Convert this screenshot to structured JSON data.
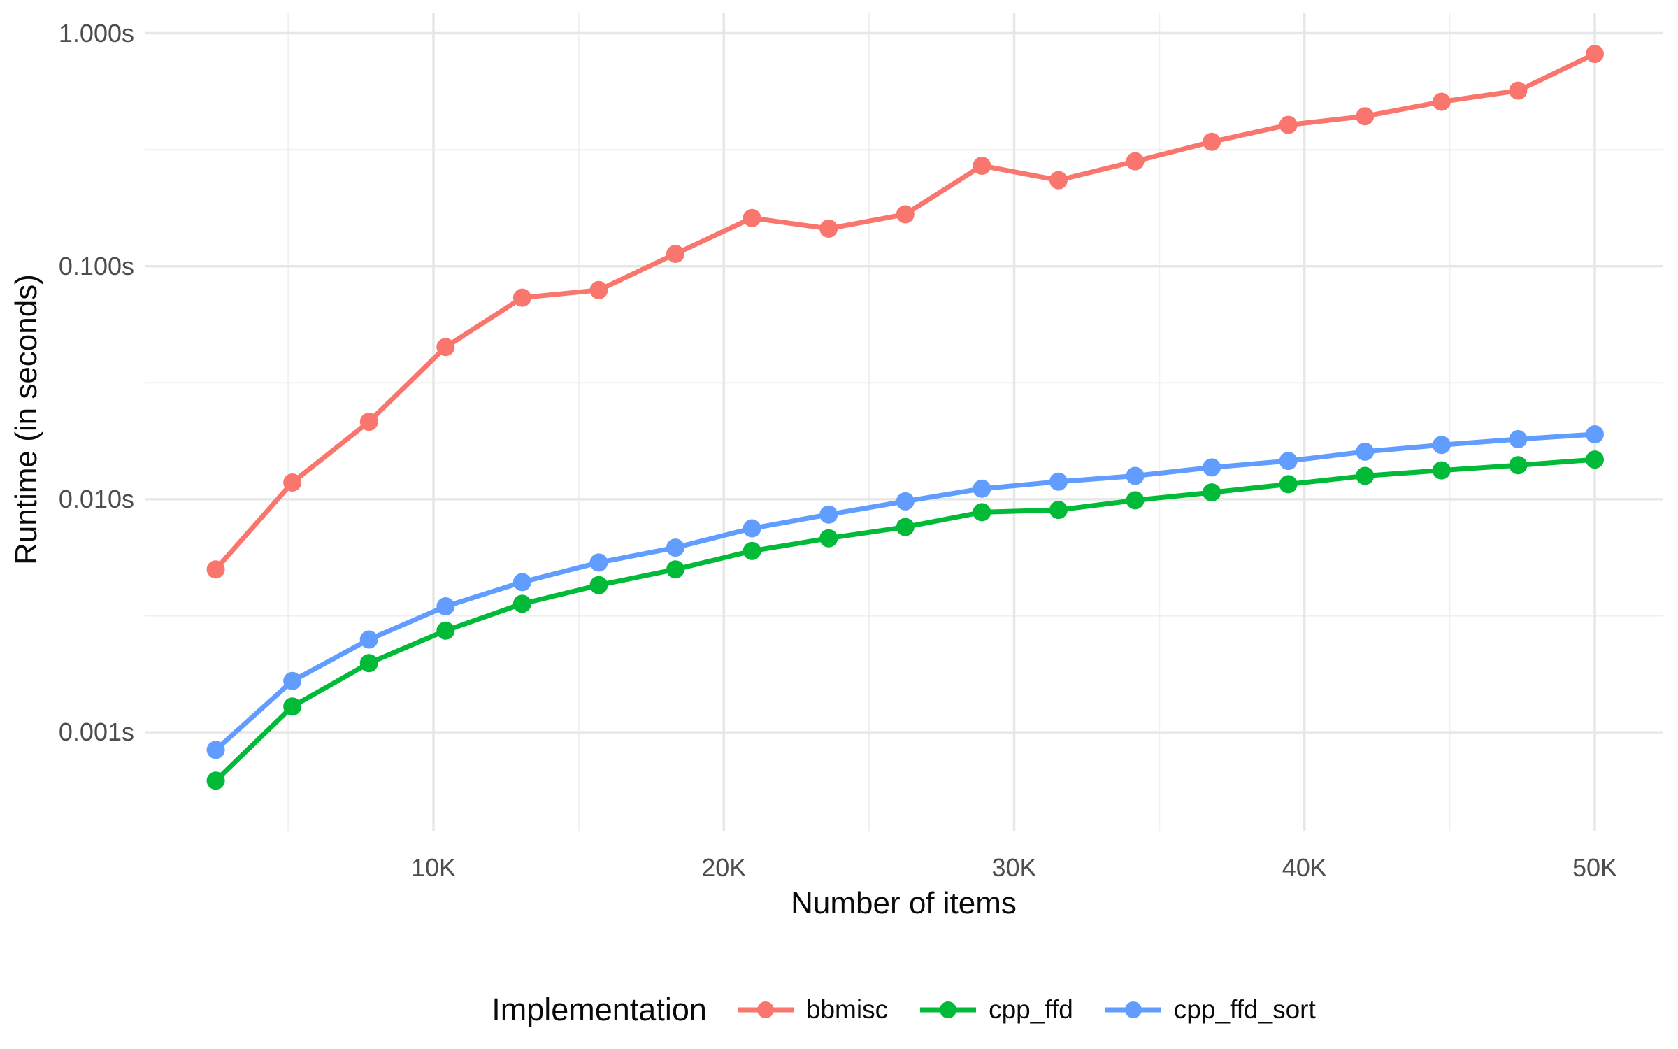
{
  "chart_data": {
    "type": "line",
    "title": "",
    "xlabel": "Number of items",
    "ylabel": "Runtime (in seconds)",
    "legend_title": "Implementation",
    "legend_position": "bottom",
    "x_scale": "linear",
    "y_scale": "log10",
    "x_range": [
      2500,
      50000
    ],
    "y_range": [
      0.0006,
      1.0
    ],
    "grid": true,
    "x_ticks": [
      {
        "value": 10000,
        "label": "10K"
      },
      {
        "value": 20000,
        "label": "20K"
      },
      {
        "value": 30000,
        "label": "30K"
      },
      {
        "value": 40000,
        "label": "40K"
      },
      {
        "value": 50000,
        "label": "50K"
      }
    ],
    "x_minor_ticks": [
      5000,
      15000,
      25000,
      35000,
      45000
    ],
    "y_ticks": [
      {
        "value": 1.0,
        "label": "1.000s"
      },
      {
        "value": 0.1,
        "label": "0.100s"
      },
      {
        "value": 0.01,
        "label": "0.010s"
      },
      {
        "value": 0.001,
        "label": "0.001s"
      }
    ],
    "y_minor_ticks": [
      0.3162,
      0.03162,
      0.003162
    ],
    "x": [
      2500,
      5139,
      7778,
      10417,
      13056,
      15694,
      18333,
      20972,
      23611,
      26250,
      28889,
      31528,
      34167,
      36806,
      39444,
      42083,
      44722,
      47361,
      50000
    ],
    "series": [
      {
        "name": "bbmisc",
        "color": "#F8766D",
        "values": [
          0.005,
          0.0118,
          0.0215,
          0.045,
          0.0733,
          0.079,
          0.113,
          0.161,
          0.145,
          0.167,
          0.27,
          0.234,
          0.282,
          0.342,
          0.404,
          0.44,
          0.508,
          0.567,
          0.815
        ]
      },
      {
        "name": "cpp_ffd",
        "color": "#00BA38",
        "values": [
          0.00062,
          0.00129,
          0.00198,
          0.00273,
          0.00356,
          0.00428,
          0.005,
          0.006,
          0.0068,
          0.0076,
          0.0088,
          0.009,
          0.0099,
          0.0107,
          0.0116,
          0.0126,
          0.0133,
          0.014,
          0.0148
        ]
      },
      {
        "name": "cpp_ffd_sort",
        "color": "#619CFF",
        "values": [
          0.00084,
          0.00166,
          0.0025,
          0.00347,
          0.00441,
          0.00535,
          0.0062,
          0.0075,
          0.0086,
          0.0098,
          0.0111,
          0.0119,
          0.0126,
          0.0137,
          0.0146,
          0.016,
          0.0171,
          0.0181,
          0.019
        ]
      }
    ],
    "style": {
      "background": "#FFFFFF",
      "major_grid_color": "#E7E7E7",
      "minor_grid_color": "#F0F0F0",
      "tick_label_color": "#4D4D4D",
      "title_color": "#0A0A0A"
    }
  }
}
